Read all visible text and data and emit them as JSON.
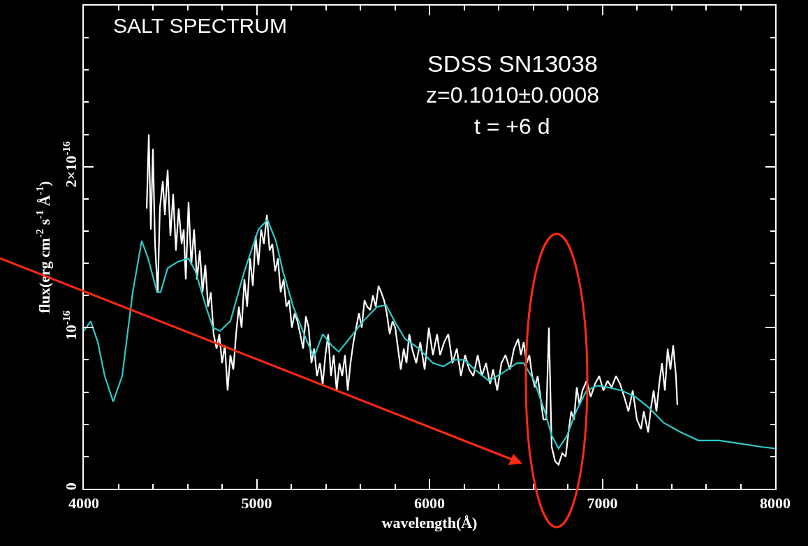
{
  "chart_data": {
    "type": "line",
    "xlabel": "wavelength(Å)",
    "ylabel": "flux(erg cm$^{-2}$ s$^{-1}$ Å$^{-1}$)",
    "annotations": [
      "SALT SPECTRUM",
      "SDSS SN13038",
      "z=0.1010±0.0008",
      "t = +6 d"
    ],
    "xlim": [
      4000,
      8000
    ],
    "xticks": [
      4000,
      5000,
      6000,
      7000,
      8000
    ],
    "ylim": [
      0,
      3e-16
    ],
    "yticks": [
      0,
      {
        "value": 1e-16,
        "label": "10$^{-16}$"
      },
      {
        "value": 2e-16,
        "label": "2×10$^{-16}$"
      }
    ],
    "grid": false,
    "line_style": "solid",
    "marker": "none",
    "series": [
      {
        "color": "#ffffff",
        "x": [
          4364,
          4376,
          4388,
          4400,
          4412,
          4428,
          4440,
          4457,
          4469,
          4485,
          4501,
          4517,
          4533,
          4549,
          4566,
          4578,
          4590,
          4606,
          4622,
          4638,
          4655,
          4671,
          4687,
          4703,
          4719,
          4735,
          4751,
          4768,
          4784,
          4800,
          4816,
          4832,
          4848,
          4865,
          4881,
          4897,
          4913,
          4929,
          4945,
          4962,
          4978,
          4994,
          5010,
          5026,
          5042,
          5059,
          5075,
          5091,
          5107,
          5123,
          5139,
          5156,
          5172,
          5188,
          5204,
          5220,
          5236,
          5252,
          5269,
          5285,
          5301,
          5317,
          5333,
          5349,
          5366,
          5382,
          5398,
          5414,
          5430,
          5446,
          5463,
          5479,
          5495,
          5511,
          5527,
          5543,
          5560,
          5576,
          5592,
          5608,
          5624,
          5640,
          5657,
          5673,
          5689,
          5705,
          5721,
          5737,
          5753,
          5770,
          5786,
          5802,
          5818,
          5834,
          5851,
          5867,
          5883,
          5899,
          5923,
          5947,
          5972,
          5996,
          6020,
          6044,
          6061,
          6085,
          6109,
          6133,
          6158,
          6182,
          6206,
          6230,
          6254,
          6279,
          6303,
          6327,
          6351,
          6368,
          6392,
          6416,
          6440,
          6465,
          6489,
          6513,
          6529,
          6545,
          6562,
          6578,
          6594,
          6610,
          6626,
          6642,
          6659,
          6675,
          6691,
          6707,
          6727,
          6747,
          6768,
          6788,
          6804,
          6820,
          6836,
          6852,
          6868,
          6885,
          6909,
          6933,
          6957,
          6982,
          7006,
          7030,
          7054,
          7079,
          7103,
          7127,
          7151,
          7176,
          7200,
          7224,
          7240,
          7265,
          7281,
          7297,
          7313,
          7329,
          7345,
          7362,
          7378,
          7394,
          7410,
          7426,
          7434
        ],
        "values": [
          1.74e-16,
          2.2e-16,
          1.61e-16,
          2.11e-16,
          1.52e-16,
          1.22e-16,
          1.74e-16,
          1.91e-16,
          1.7e-16,
          1.98e-16,
          1.57e-16,
          1.83e-16,
          1.48e-16,
          1.74e-16,
          1.52e-16,
          1.61e-16,
          1.3e-16,
          1.78e-16,
          1.39e-16,
          1.61e-16,
          1.3e-16,
          1.48e-16,
          1.22e-16,
          1.39e-16,
          1.13e-16,
          1.22e-16,
          9.6e-17,
          8.7e-17,
          9.6e-17,
          7.8e-17,
          8.9e-17,
          6.1e-17,
          8.3e-17,
          7.4e-17,
          9.6e-17,
          1.13e-16,
          1e-16,
          1.3e-16,
          1.13e-16,
          1.43e-16,
          1.26e-16,
          1.57e-16,
          1.39e-16,
          1.61e-16,
          1.52e-16,
          1.7e-16,
          1.48e-16,
          1.52e-16,
          1.35e-16,
          1.43e-16,
          1.22e-16,
          1.3e-16,
          1.13e-16,
          1.17e-16,
          1e-16,
          1.09e-16,
          1.04e-16,
          9.6e-17,
          8.7e-17,
          1.07e-16,
          1e-16,
          7.8e-17,
          8.7e-17,
          7e-17,
          7.8e-17,
          6.5e-17,
          8.3e-17,
          9.6e-17,
          7e-17,
          8.3e-17,
          6.1e-17,
          7.8e-17,
          7e-17,
          8.3e-17,
          6.1e-17,
          7.8e-17,
          9.1e-17,
          1e-16,
          1.09e-16,
          1e-16,
          1.17e-16,
          1.13e-16,
          1.11e-16,
          1.2e-16,
          1.13e-16,
          1.26e-16,
          1.22e-16,
          1.17e-16,
          1.09e-16,
          9.6e-17,
          1.04e-16,
          1e-16,
          8.7e-17,
          7.4e-17,
          8.7e-17,
          7.8e-17,
          9.6e-17,
          8.7e-17,
          7.8e-17,
          9.1e-17,
          7.4e-17,
          1e-16,
          8.3e-17,
          9.6e-17,
          8.3e-17,
          9.1e-17,
          9.6e-17,
          7.8e-17,
          8.7e-17,
          7e-17,
          8.3e-17,
          7.4e-17,
          7e-17,
          8.3e-17,
          7e-17,
          7.8e-17,
          6.5e-17,
          7.4e-17,
          6.1e-17,
          7.8e-17,
          8.3e-17,
          7.4e-17,
          8.7e-17,
          9.3e-17,
          8.3e-17,
          9.1e-17,
          7.8e-17,
          8.3e-17,
          7e-17,
          6.3e-17,
          7e-17,
          5.7e-17,
          4.3e-17,
          4.3e-17,
          1e-16,
          2.6e-17,
          1.7e-17,
          1.5e-17,
          2.2e-17,
          2e-17,
          3.5e-17,
          4.8e-17,
          4.3e-17,
          6.3e-17,
          5.2e-17,
          6.1e-17,
          6.7e-17,
          5.7e-17,
          6.5e-17,
          7e-17,
          6.1e-17,
          6.7e-17,
          6.3e-17,
          7e-17,
          6.5e-17,
          5.7e-17,
          4.8e-17,
          6.1e-17,
          4.3e-17,
          3.7e-17,
          4.8e-17,
          3.5e-17,
          5e-17,
          6.1e-17,
          4.8e-17,
          6.5e-17,
          7.8e-17,
          6.1e-17,
          8.7e-17,
          7.4e-17,
          8.9e-17,
          7e-17,
          5.2e-17
        ]
      },
      {
        "color": "#2ec8c8",
        "x": [
          4000,
          4040,
          4081,
          4121,
          4170,
          4222,
          4283,
          4335,
          4372,
          4424,
          4444,
          4485,
          4545,
          4606,
          4646,
          4707,
          4747,
          4788,
          4848,
          4929,
          5010,
          5063,
          5111,
          5152,
          5212,
          5293,
          5333,
          5382,
          5434,
          5475,
          5535,
          5616,
          5697,
          5749,
          5798,
          5859,
          5939,
          6020,
          6081,
          6141,
          6202,
          6263,
          6343,
          6424,
          6505,
          6545,
          6606,
          6667,
          6707,
          6747,
          6796,
          6848,
          6909,
          6970,
          7030,
          7111,
          7192,
          7273,
          7354,
          7455,
          7556,
          7677,
          7798,
          7919,
          8000
        ],
        "values": [
          9.8e-17,
          1.04e-16,
          9.1e-17,
          7e-17,
          5.4e-17,
          7e-17,
          1.22e-16,
          1.54e-16,
          1.43e-16,
          1.22e-16,
          1.22e-16,
          1.37e-16,
          1.41e-16,
          1.43e-16,
          1.35e-16,
          1.13e-16,
          1e-16,
          9.8e-17,
          1.04e-16,
          1.35e-16,
          1.61e-16,
          1.67e-16,
          1.54e-16,
          1.35e-16,
          1.13e-16,
          9.1e-17,
          8.2e-17,
          9.6e-17,
          8.9e-17,
          8.5e-17,
          9.3e-17,
          1.04e-16,
          1.13e-16,
          1.14e-16,
          1.04e-16,
          9.3e-17,
          8.7e-17,
          7.8e-17,
          7.6e-17,
          8e-17,
          8e-17,
          7.4e-17,
          6.7e-17,
          7.2e-17,
          7.8e-17,
          7.8e-17,
          6.7e-17,
          4.8e-17,
          3.3e-17,
          2.5e-17,
          3.3e-17,
          4.8e-17,
          6.1e-17,
          6.4e-17,
          6.3e-17,
          6.1e-17,
          5.7e-17,
          5e-17,
          4.1e-17,
          3.5e-17,
          3e-17,
          3e-17,
          2.8e-17,
          2.6e-17,
          2.5e-17
        ]
      }
    ]
  }
}
